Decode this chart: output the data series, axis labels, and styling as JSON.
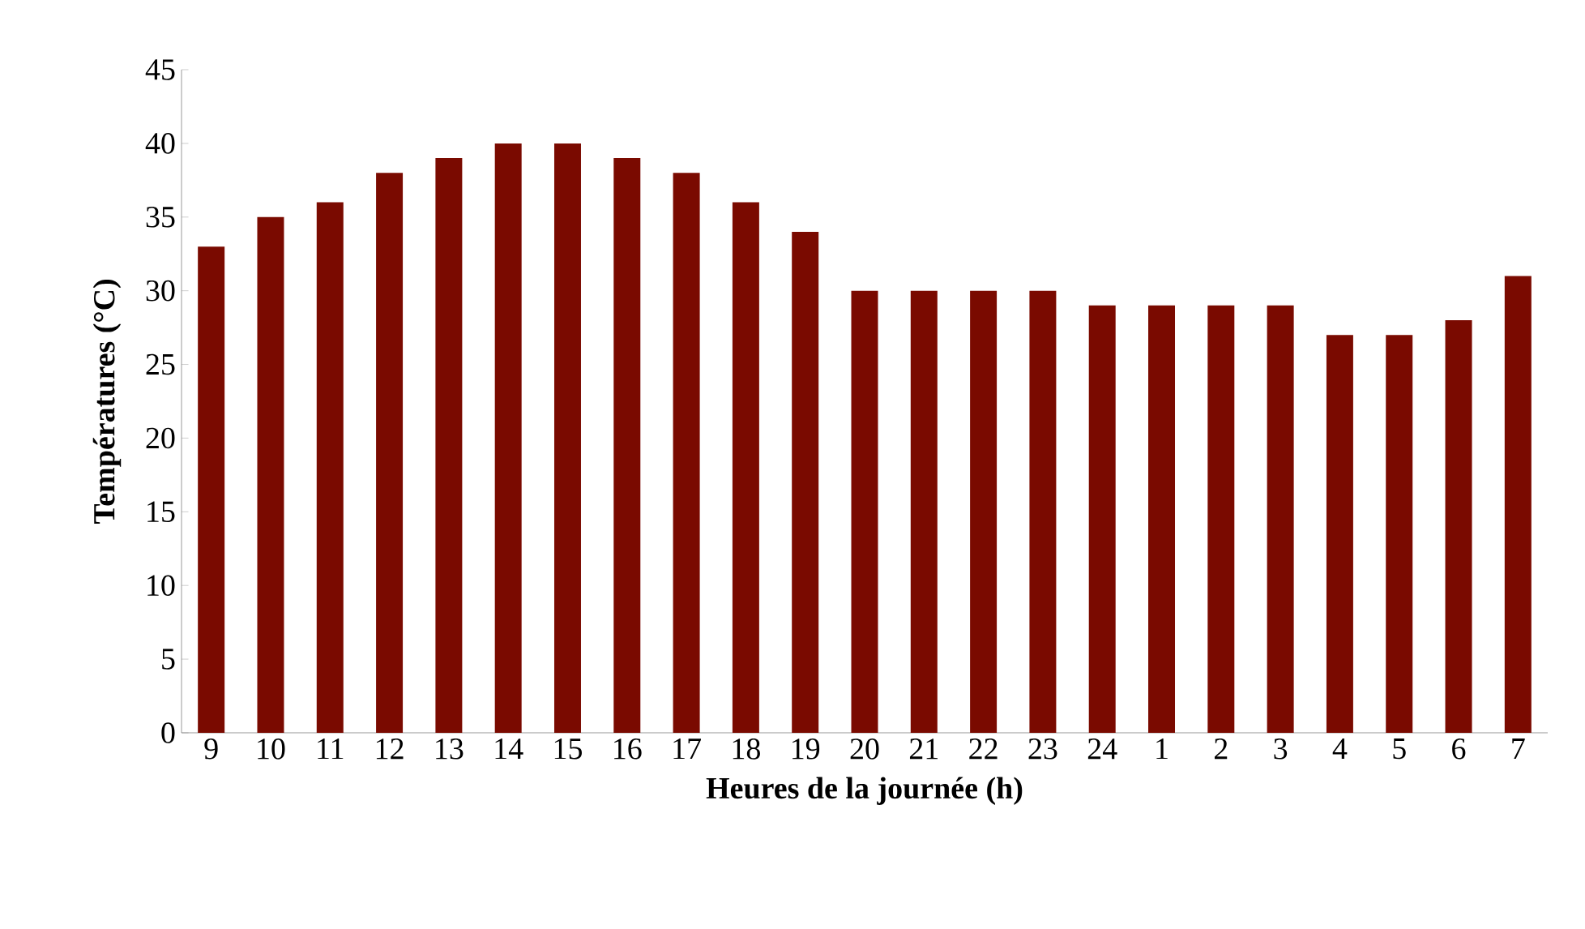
{
  "chart_data": {
    "type": "bar",
    "xlabel": "Heures de la journée (h)",
    "ylabel": "Températures (°C)",
    "categories": [
      "9",
      "10",
      "11",
      "12",
      "13",
      "14",
      "15",
      "16",
      "17",
      "18",
      "19",
      "20",
      "21",
      "22",
      "23",
      "24",
      "1",
      "2",
      "3",
      "4",
      "5",
      "6",
      "7"
    ],
    "values": [
      33,
      35,
      36,
      38,
      39,
      40,
      40,
      39,
      38,
      36,
      34,
      30,
      30,
      30,
      30,
      29,
      29,
      29,
      29,
      27,
      27,
      28,
      31
    ],
    "color": "#7a0a00",
    "ylim": [
      0,
      45
    ],
    "yticks": [
      0,
      5,
      10,
      15,
      20,
      25,
      30,
      35,
      40,
      45
    ],
    "grid": false
  }
}
